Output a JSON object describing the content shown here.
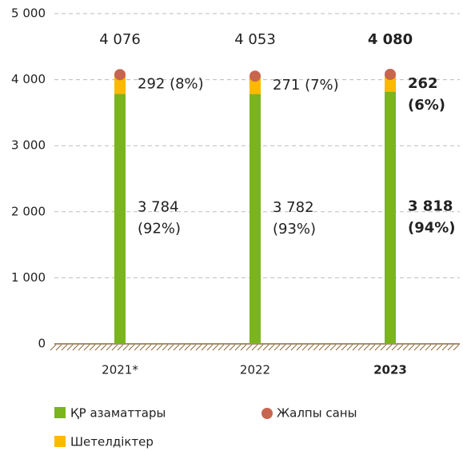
{
  "chart_data": {
    "type": "stacked_bar",
    "categories": [
      "2021*",
      "2022",
      "2023"
    ],
    "series": [
      {
        "name": "ҚР азаматтары",
        "color": "#7ab51d",
        "values": [
          3784,
          3782,
          3818
        ],
        "value_labels": [
          [
            "3 784",
            "(92%)"
          ],
          [
            "3 782",
            "(93%)"
          ],
          [
            "3 818",
            "(94%)"
          ]
        ]
      },
      {
        "name": "Шетелдіктер",
        "color": "#fbb900",
        "values": [
          292,
          271,
          262
        ],
        "value_labels": [
          [
            "292 (8%)"
          ],
          [
            "271 (7%)"
          ],
          [
            "262",
            "(6%)"
          ]
        ]
      }
    ],
    "totals": {
      "name": "Жалпы саны",
      "color": "#c8654e",
      "values": [
        4076,
        4053,
        4080
      ],
      "value_labels": [
        "4 076",
        "4 053",
        "4 080"
      ]
    },
    "ylim": [
      0,
      5000
    ],
    "yticks": [
      0,
      {
        "value": 1000,
        "label": "1 000"
      },
      {
        "value": 2000,
        "label": "2 000"
      },
      {
        "value": 3000,
        "label": "3 000"
      },
      {
        "value": 4000,
        "label": "4 000"
      },
      {
        "value": 5000,
        "label": "5 000"
      }
    ],
    "grid": true
  }
}
